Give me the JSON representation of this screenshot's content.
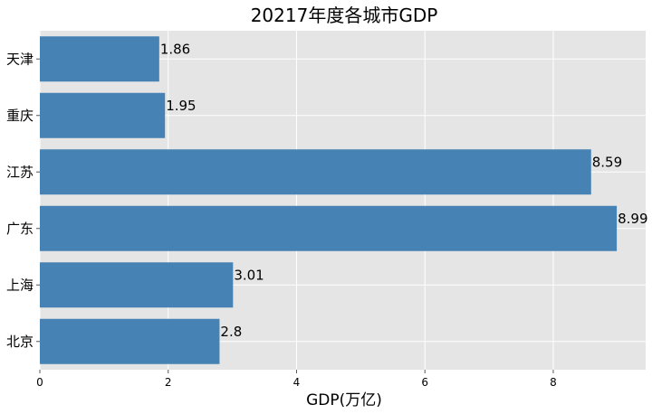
{
  "chart_data": {
    "type": "bar",
    "orientation": "horizontal",
    "title": "20217年度各城市GDP",
    "xlabel": "GDP(万亿)",
    "ylabel": "",
    "categories": [
      "北京",
      "上海",
      "广东",
      "江苏",
      "重庆",
      "天津"
    ],
    "values": [
      2.8,
      3.01,
      8.99,
      8.59,
      1.95,
      1.86
    ],
    "data_labels": [
      "2.8",
      "3.01",
      "8.99",
      "8.59",
      "1.95",
      "1.86"
    ],
    "xlim": [
      0,
      9.44
    ],
    "xticks": [
      0,
      2,
      4,
      6,
      8
    ],
    "xtick_labels": [
      "0",
      "2",
      "4",
      "6",
      "8"
    ],
    "grid": true,
    "legend": "none",
    "colors": {
      "bar": "#4682b4",
      "plot_background": "#e5e5e5",
      "grid": "#ffffff"
    }
  }
}
